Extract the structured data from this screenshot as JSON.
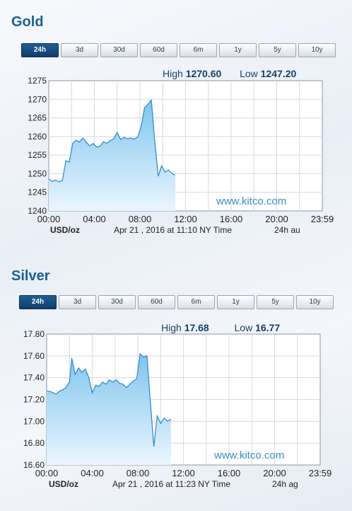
{
  "tabs": [
    "24h",
    "3d",
    "30d",
    "60d",
    "6m",
    "1y",
    "5y",
    "10y"
  ],
  "colors": {
    "title": "#1a5f95",
    "tab_active": "#1a4f82",
    "line": "#2a86cc",
    "area_top": "#7fc5ee",
    "area_bottom": "#eaf6fd",
    "watermark": "#3d8ec9"
  },
  "gold": {
    "title": "Gold",
    "active_tab": "24h",
    "high_label": "High",
    "high_value": "1270.60",
    "low_label": "Low",
    "low_value": "1247.20",
    "unit": "USD/oz",
    "timestamp": "Apr 21 , 2016 at 11:10 NY Time",
    "period_code": "24h au",
    "watermark": "www.kitco.com",
    "chart_data": {
      "type": "area",
      "x_ticks": [
        "00:00",
        "04:00",
        "08:00",
        "12:00",
        "16:00",
        "20:00",
        "23:59"
      ],
      "y_ticks": [
        "1275",
        "1270",
        "1265",
        "1260",
        "1255",
        "1250",
        "1245",
        "1240"
      ],
      "ylim": [
        1240,
        1275
      ],
      "xlim_hours": [
        0,
        24
      ],
      "grid": true,
      "series": [
        {
          "x": [
            0.0,
            0.3,
            0.6,
            0.9,
            1.2,
            1.5,
            1.8,
            2.1,
            2.4,
            2.7,
            3.0,
            3.3,
            3.6,
            3.9,
            4.2,
            4.5,
            4.8,
            5.1,
            5.4,
            5.7,
            6.0,
            6.3,
            6.6,
            6.9,
            7.2,
            7.5,
            7.8,
            8.1,
            8.4,
            8.7,
            9.0,
            9.3,
            9.6,
            9.9,
            10.2,
            10.5,
            10.8,
            11.1
          ],
          "y": [
            1248.6,
            1247.9,
            1248.3,
            1247.8,
            1248.2,
            1253.5,
            1253.1,
            1258.2,
            1259.0,
            1258.5,
            1259.6,
            1258.4,
            1257.5,
            1258.1,
            1257.2,
            1257.4,
            1258.6,
            1258.2,
            1258.9,
            1259.4,
            1261.1,
            1259.2,
            1259.8,
            1259.4,
            1259.6,
            1259.3,
            1259.9,
            1262.6,
            1267.8,
            1268.6,
            1269.8,
            1258.6,
            1249.3,
            1252.1,
            1250.4,
            1251.0,
            1250.1,
            1249.6
          ]
        }
      ]
    }
  },
  "silver": {
    "title": "Silver",
    "active_tab": "24h",
    "high_label": "High",
    "high_value": "17.68",
    "low_label": "Low",
    "low_value": "16.77",
    "unit": "USD/oz",
    "timestamp": "Apr 21 , 2016 at 11:23 NY Time",
    "period_code": "24h ag",
    "watermark": "www.kitco.com",
    "chart_data": {
      "type": "area",
      "x_ticks": [
        "00:00",
        "04:00",
        "08:00",
        "12:00",
        "16:00",
        "20:00",
        "23:59"
      ],
      "y_ticks": [
        "17.80",
        "17.60",
        "17.40",
        "17.20",
        "17.00",
        "16.80",
        "16.60"
      ],
      "ylim": [
        16.6,
        17.8
      ],
      "xlim_hours": [
        0,
        24
      ],
      "grid": true,
      "series": [
        {
          "x": [
            0.0,
            0.4,
            0.8,
            1.2,
            1.6,
            2.0,
            2.2,
            2.5,
            2.8,
            3.1,
            3.4,
            3.7,
            4.0,
            4.3,
            4.6,
            4.9,
            5.2,
            5.5,
            5.8,
            6.1,
            6.4,
            6.7,
            7.0,
            7.3,
            7.6,
            7.9,
            8.2,
            8.5,
            8.8,
            9.1,
            9.4,
            9.7,
            10.0,
            10.3,
            10.6,
            10.9
          ],
          "y": [
            17.28,
            17.27,
            17.25,
            17.28,
            17.3,
            17.36,
            17.58,
            17.43,
            17.49,
            17.45,
            17.48,
            17.4,
            17.26,
            17.33,
            17.32,
            17.36,
            17.34,
            17.38,
            17.36,
            17.38,
            17.35,
            17.34,
            17.31,
            17.34,
            17.37,
            17.39,
            17.62,
            17.59,
            17.6,
            17.18,
            16.77,
            17.05,
            16.98,
            17.03,
            17.0,
            17.02
          ]
        }
      ]
    }
  }
}
